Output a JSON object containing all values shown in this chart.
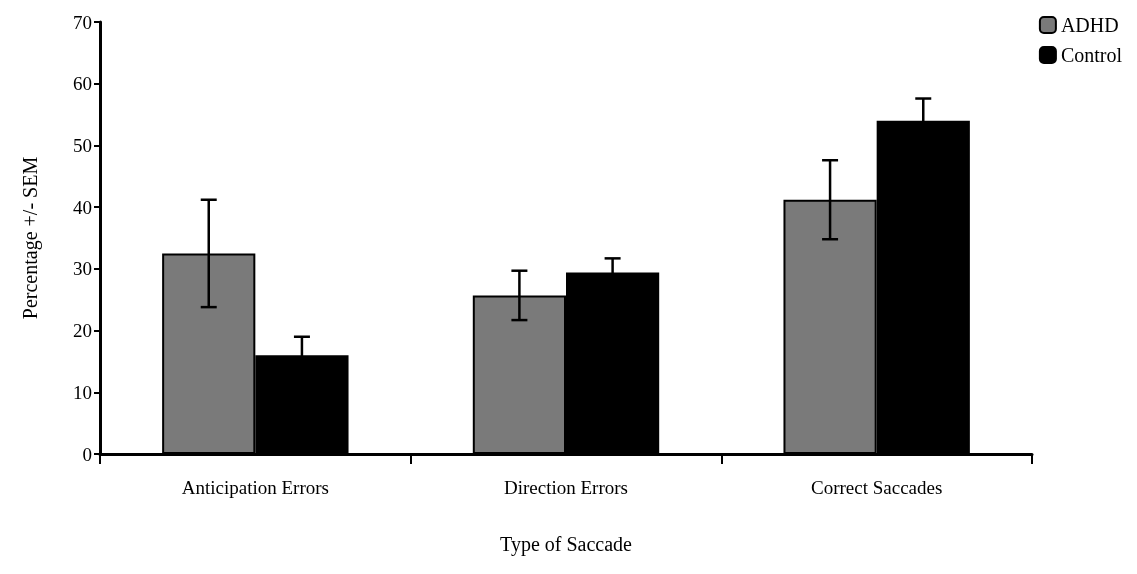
{
  "chart_data": {
    "type": "bar",
    "xlabel": "Type of Saccade",
    "ylabel": "Percentage +/- SEM",
    "categories": [
      "Anticipation Errors",
      "Direction Errors",
      "Correct Saccades"
    ],
    "series": [
      {
        "name": "ADHD",
        "color": "#7a7a7a",
        "values": [
          32.5,
          25.7,
          41.2
        ],
        "errors": [
          8.7,
          4,
          6.4
        ]
      },
      {
        "name": "Control",
        "color": "#000000",
        "values": [
          16,
          29.4,
          54
        ],
        "errors": [
          3,
          2.3,
          3.6
        ]
      }
    ],
    "ylim": [
      0,
      70
    ],
    "yticks": [
      0,
      10,
      20,
      30,
      40,
      50,
      60,
      70
    ],
    "grid": false,
    "legend": "top right"
  }
}
